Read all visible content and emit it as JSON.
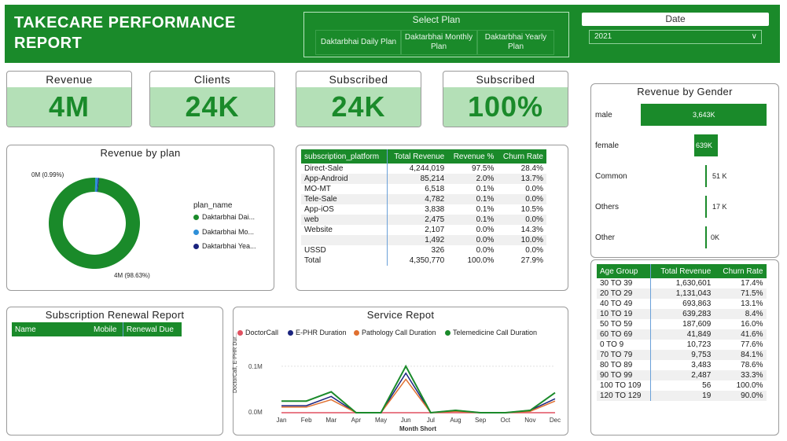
{
  "header": {
    "title": "TAKECARE PERFORMANCE REPORT"
  },
  "select_plan": {
    "label": "Select Plan",
    "options": [
      "Daktarbhai Daily Plan",
      "Daktarbhai Monthly Plan",
      "Daktarbhai Yearly Plan"
    ]
  },
  "date_filter": {
    "label": "Date",
    "value": "2021"
  },
  "kpis": [
    {
      "label": "Revenue",
      "value": "4M"
    },
    {
      "label": "Clients",
      "value": "24K"
    },
    {
      "label": "Subscribed",
      "value": "24K"
    },
    {
      "label": "Subscribed",
      "value": "100%"
    }
  ],
  "revenue_by_plan": {
    "title": "Revenue by plan",
    "legend_title": "plan_name",
    "label_small": "0M (0.99%)",
    "label_big": "4M (98.63%)",
    "legend": [
      {
        "name": "Daktarbhai Dai...",
        "color": "#1a8a2a"
      },
      {
        "name": "Daktarbhai Mo...",
        "color": "#2e8fd8"
      },
      {
        "name": "Daktarbhai Yea...",
        "color": "#1a237e"
      }
    ],
    "slices": [
      98.63,
      0.99,
      0.38
    ]
  },
  "platform_table": {
    "headers": [
      "subscription_platform",
      "Total Revenue",
      "Revenue %",
      "Churn Rate"
    ],
    "rows": [
      [
        "Direct-Sale",
        "4,244,019",
        "97.5%",
        "28.4%"
      ],
      [
        "App-Android",
        "85,214",
        "2.0%",
        "13.7%"
      ],
      [
        "MO-MT",
        "6,518",
        "0.1%",
        "0.0%"
      ],
      [
        "Tele-Sale",
        "4,782",
        "0.1%",
        "0.0%"
      ],
      [
        "App-iOS",
        "3,838",
        "0.1%",
        "10.5%"
      ],
      [
        "web",
        "2,475",
        "0.1%",
        "0.0%"
      ],
      [
        "Website",
        "2,107",
        "0.0%",
        "14.3%"
      ],
      [
        "",
        "1,492",
        "0.0%",
        "10.0%"
      ],
      [
        "USSD",
        "326",
        "0.0%",
        "0.0%"
      ]
    ],
    "total": [
      "Total",
      "4,350,770",
      "100.0%",
      "27.9%"
    ]
  },
  "revenue_by_gender": {
    "title": "Revenue by Gender",
    "rows": [
      {
        "label": "male",
        "value": "3,643K",
        "amount": 3643
      },
      {
        "label": "female",
        "value": "639K",
        "amount": 639
      },
      {
        "label": "Common",
        "value": "51 K",
        "amount": 51
      },
      {
        "label": "Others",
        "value": "17 K",
        "amount": 17
      },
      {
        "label": "Other",
        "value": "0K",
        "amount": 0
      }
    ]
  },
  "age_table": {
    "headers": [
      "Age Group",
      "Total Revenue",
      "Churn Rate"
    ],
    "rows": [
      [
        "30 TO 39",
        "1,630,601",
        "17.4%"
      ],
      [
        "20 TO 29",
        "1,131,043",
        "71.5%"
      ],
      [
        "40 TO 49",
        "693,863",
        "13.1%"
      ],
      [
        "10 TO 19",
        "639,283",
        "8.4%"
      ],
      [
        "50 TO 59",
        "187,609",
        "16.0%"
      ],
      [
        "60 TO 69",
        "41,849",
        "41.6%"
      ],
      [
        "0 TO 9",
        "10,723",
        "77.6%"
      ],
      [
        "70 TO 79",
        "9,753",
        "84.1%"
      ],
      [
        "80 TO 89",
        "3,483",
        "78.6%"
      ],
      [
        "90 TO 99",
        "2,487",
        "33.3%"
      ],
      [
        "100 TO 109",
        "56",
        "100.0%"
      ],
      [
        "120 TO 129",
        "19",
        "90.0%"
      ]
    ]
  },
  "renewal_report": {
    "title": "Subscription Renewal Report",
    "headers": [
      "Name",
      "Mobile",
      "Renewal Due"
    ]
  },
  "service_report": {
    "title": "Service Repot",
    "legend": [
      {
        "name": "DoctorCall",
        "color": "#e05060"
      },
      {
        "name": "E-PHR Duration",
        "color": "#1a237e"
      },
      {
        "name": "Pathology Call Duration",
        "color": "#e07030"
      },
      {
        "name": "Telemedicine Call Duration",
        "color": "#1a8a2a"
      }
    ],
    "ylabel": "DoctorCall, E-PHR Dur...",
    "xlabel": "Month Short",
    "yticks": [
      "0.1M",
      "0.0M"
    ]
  },
  "chart_data": {
    "type": "line",
    "title": "Service Repot",
    "xlabel": "Month Short",
    "ylabel": "DoctorCall, E-PHR Dur...",
    "x": [
      "Jan",
      "Feb",
      "Mar",
      "Apr",
      "May",
      "Jun",
      "Jul",
      "Aug",
      "Sep",
      "Oct",
      "Nov",
      "Dec"
    ],
    "ylim": [
      0,
      110000
    ],
    "series": [
      {
        "name": "DoctorCall",
        "color": "#e05060",
        "values": [
          0,
          0,
          0,
          0,
          0,
          0,
          0,
          0,
          0,
          0,
          0,
          0
        ]
      },
      {
        "name": "E-PHR Duration",
        "color": "#1a237e",
        "values": [
          15000,
          15000,
          35000,
          0,
          0,
          85000,
          0,
          5000,
          0,
          0,
          5000,
          30000
        ]
      },
      {
        "name": "Pathology Call Duration",
        "color": "#e07030",
        "values": [
          12000,
          12000,
          28000,
          0,
          0,
          72000,
          0,
          3000,
          0,
          0,
          3000,
          25000
        ]
      },
      {
        "name": "Telemedicine Call Duration",
        "color": "#1a8a2a",
        "values": [
          25000,
          25000,
          45000,
          0,
          0,
          100000,
          0,
          5000,
          0,
          0,
          5000,
          43000
        ]
      }
    ]
  }
}
